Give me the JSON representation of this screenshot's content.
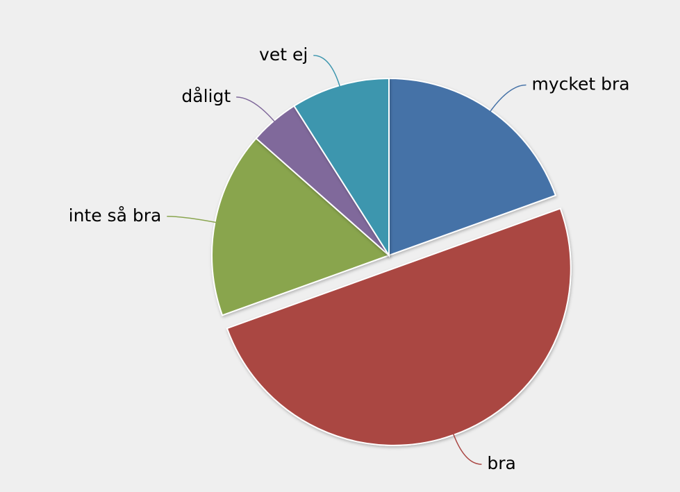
{
  "chart_data": {
    "type": "pie",
    "categories": [
      "mycket bra",
      "bra",
      "inte så bra",
      "dåligt",
      "vet ej"
    ],
    "values": [
      19.5,
      50,
      17,
      4.5,
      9
    ],
    "colors": [
      "#4572a7",
      "#aa4643",
      "#89a54e",
      "#80699b",
      "#3d96ae"
    ],
    "explode": [
      0,
      1,
      0,
      0,
      0
    ]
  }
}
